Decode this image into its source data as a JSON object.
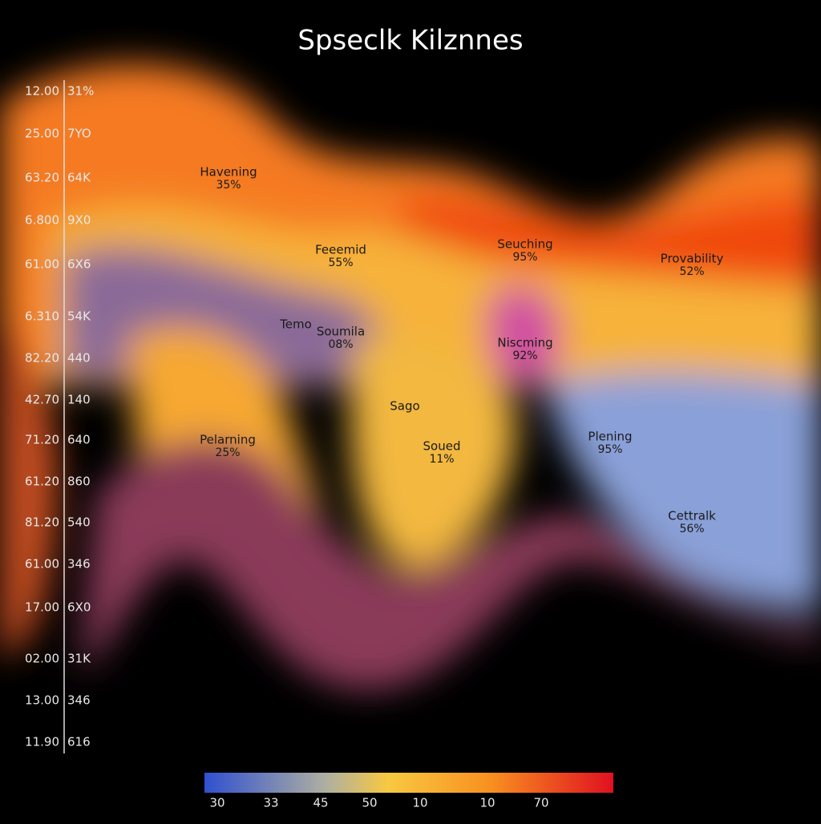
{
  "header": {
    "title": "Spseclk Kilznnes"
  },
  "axis_rows": [
    [
      "12.00",
      "31%"
    ],
    [
      "25.00",
      "7YO"
    ],
    [
      "63.20",
      "64K"
    ],
    [
      "6.800",
      "9X0"
    ],
    [
      "61.00",
      "6X6"
    ],
    [
      "6.310",
      "54K"
    ],
    [
      "82.20",
      "440"
    ],
    [
      "42.70",
      "140"
    ],
    [
      "71.20",
      "640"
    ],
    [
      "61.20",
      "860"
    ],
    [
      "81.20",
      "540"
    ],
    [
      "61.00",
      "346"
    ],
    [
      "17.00",
      "6X0"
    ],
    [
      "02.00",
      "31K"
    ],
    [
      "13.00",
      "346"
    ],
    [
      "11.90",
      "616"
    ]
  ],
  "regions": [
    {
      "name": "Havening",
      "pct": "35%"
    },
    {
      "name": "Feeemid",
      "pct": "55%"
    },
    {
      "name": "Seuching",
      "pct": "95%"
    },
    {
      "name": "Provability",
      "pct": "52%"
    },
    {
      "name": "Temo"
    },
    {
      "name": "Soumila",
      "pct": "08%"
    },
    {
      "name": "Niscming",
      "pct": "92%"
    },
    {
      "name": "Sago"
    },
    {
      "name": "Pelarning",
      "pct": "25%"
    },
    {
      "name": "Soued",
      "pct": "11%"
    },
    {
      "name": "Plening",
      "pct": "95%"
    },
    {
      "name": "Cettralk",
      "pct": "56%"
    }
  ],
  "colorbar_labels": [
    "30",
    "33",
    "45",
    "50",
    "10",
    "10",
    "70"
  ]
}
